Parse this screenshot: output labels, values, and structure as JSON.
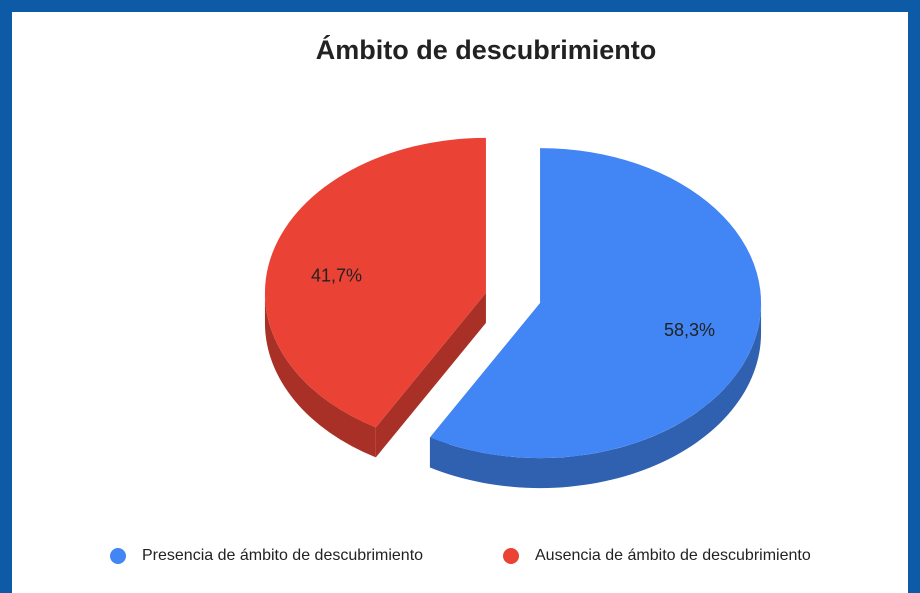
{
  "chart_data": {
    "type": "pie",
    "title": "Ámbito de descubrimiento",
    "3d": true,
    "categories": [
      "Presencia de ámbito de descubrimiento",
      "Ausencia de ámbito de descubrimiento"
    ],
    "values": [
      58.3,
      41.7
    ],
    "value_labels": [
      "58,3%",
      "41,7%"
    ],
    "colors": [
      "#4285f4",
      "#ea4335"
    ],
    "legend": "bottom"
  }
}
